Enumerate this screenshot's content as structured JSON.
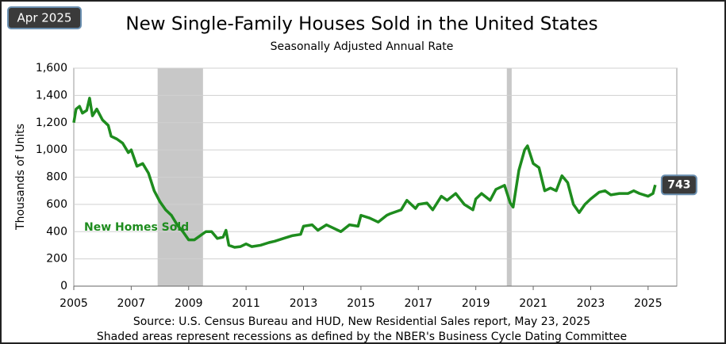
{
  "chart_data": {
    "type": "line",
    "title": "New Single-Family Houses Sold in the United States",
    "subtitle": "Seasonally Adjusted  Annual  Rate",
    "badge": "Apr 2025",
    "y_label": "Thousands of Units",
    "source": "Source:  U.S. Census Bureau and HUD, New Residential Sales report, May 23, 2025",
    "note": "Shaded areas represent recessions as defined by the NBER's Business Cycle Dating Committee",
    "xlim": [
      2005,
      2026
    ],
    "xticks": [
      2005,
      2007,
      2009,
      2011,
      2013,
      2015,
      2017,
      2019,
      2021,
      2023,
      2025
    ],
    "ylim": [
      0,
      1600
    ],
    "yticks": [
      0,
      200,
      400,
      600,
      800,
      {
        "value": 1000,
        "label": "1,000"
      },
      {
        "value": 1200,
        "label": "1,200"
      },
      {
        "value": 1400,
        "label": "1,400"
      },
      {
        "value": 1600,
        "label": "1,600"
      }
    ],
    "grid": true,
    "recessions": [
      [
        2007.92,
        2009.5
      ],
      [
        2020.08,
        2020.25
      ]
    ],
    "recession_color": "#c8c8c8",
    "x": [
      2005.0,
      2005.08,
      2005.2,
      2005.3,
      2005.45,
      2005.55,
      2005.65,
      2005.8,
      2006.0,
      2006.2,
      2006.3,
      2006.5,
      2006.7,
      2006.9,
      2007.0,
      2007.2,
      2007.4,
      2007.6,
      2007.8,
      2008.0,
      2008.2,
      2008.4,
      2008.6,
      2008.8,
      2009.0,
      2009.2,
      2009.4,
      2009.6,
      2009.8,
      2010.0,
      2010.2,
      2010.3,
      2010.4,
      2010.6,
      2010.8,
      2011.0,
      2011.2,
      2011.5,
      2011.8,
      2012.0,
      2012.3,
      2012.6,
      2012.9,
      2013.0,
      2013.3,
      2013.5,
      2013.8,
      2014.0,
      2014.3,
      2014.6,
      2014.9,
      2015.0,
      2015.3,
      2015.6,
      2015.9,
      2016.0,
      2016.4,
      2016.6,
      2016.9,
      2017.0,
      2017.3,
      2017.5,
      2017.8,
      2018.0,
      2018.3,
      2018.6,
      2018.9,
      2019.0,
      2019.2,
      2019.5,
      2019.7,
      2020.0,
      2020.2,
      2020.3,
      2020.5,
      2020.7,
      2020.8,
      2021.0,
      2021.2,
      2021.4,
      2021.6,
      2021.8,
      2022.0,
      2022.2,
      2022.4,
      2022.6,
      2022.8,
      2023.0,
      2023.3,
      2023.5,
      2023.7,
      2024.0,
      2024.3,
      2024.5,
      2024.7,
      2025.0,
      2025.17,
      2025.25
    ],
    "series": [
      {
        "name": "New Homes Sold",
        "color": "#1e8c1e",
        "values": [
          1200,
          1300,
          1320,
          1270,
          1290,
          1380,
          1250,
          1300,
          1220,
          1180,
          1100,
          1080,
          1050,
          980,
          1000,
          880,
          900,
          830,
          700,
          620,
          560,
          520,
          450,
          400,
          340,
          340,
          370,
          400,
          400,
          350,
          360,
          410,
          300,
          285,
          290,
          310,
          290,
          300,
          320,
          330,
          350,
          370,
          380,
          440,
          450,
          410,
          450,
          430,
          400,
          450,
          440,
          520,
          500,
          470,
          520,
          530,
          560,
          630,
          570,
          600,
          610,
          560,
          660,
          630,
          680,
          600,
          560,
          640,
          680,
          630,
          710,
          740,
          610,
          580,
          850,
          1000,
          1030,
          900,
          870,
          700,
          720,
          700,
          810,
          760,
          600,
          540,
          600,
          640,
          690,
          700,
          670,
          680,
          680,
          700,
          680,
          660,
          680,
          743
        ]
      }
    ]
  }
}
